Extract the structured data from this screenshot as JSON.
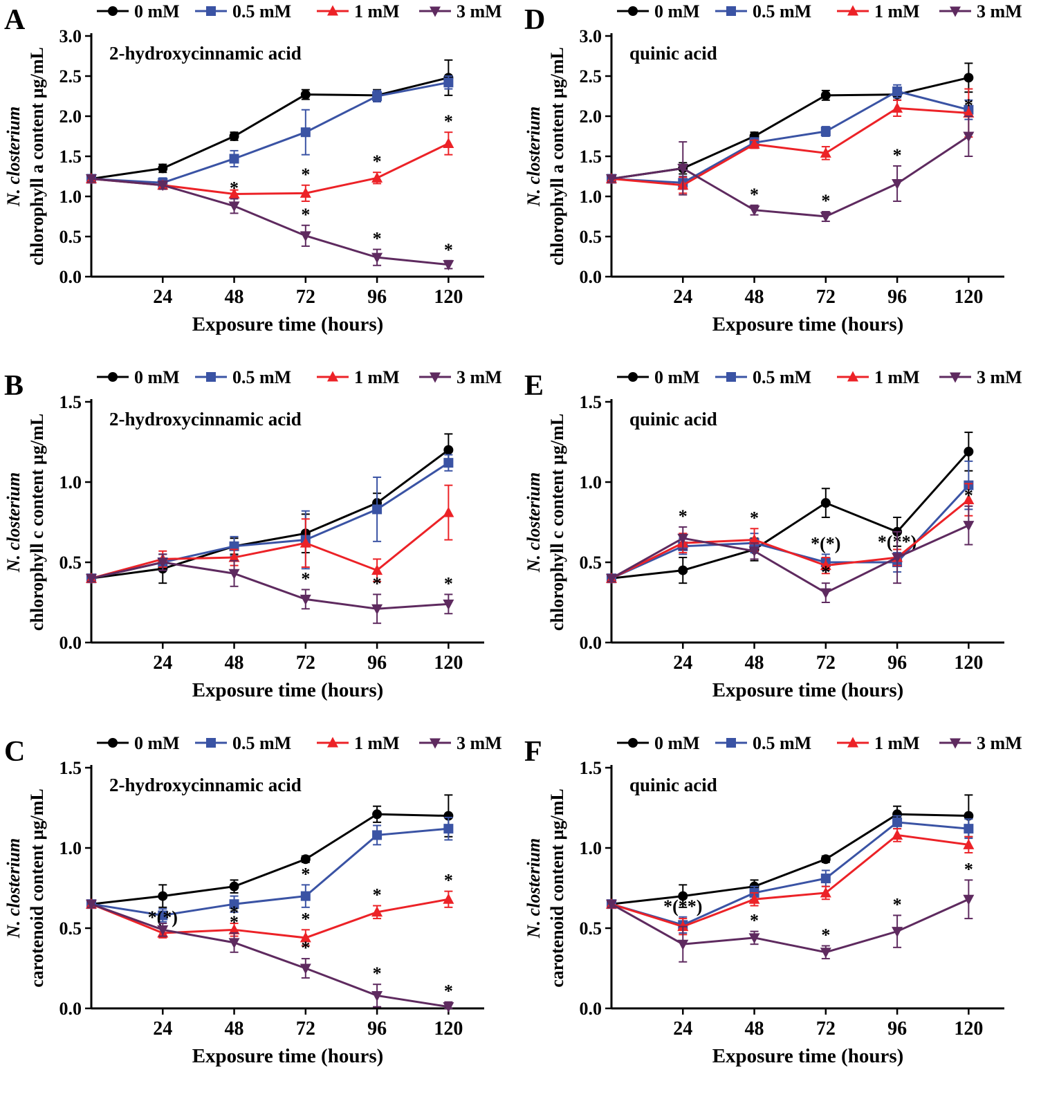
{
  "figure": {
    "background": "#ffffff",
    "xlabel": "Exposure time (hours)",
    "x_ticks": [
      24,
      48,
      72,
      96,
      120
    ],
    "species_label": "N. closterium",
    "legend": [
      {
        "label": "0 mM",
        "marker": "circle",
        "color": "#000000"
      },
      {
        "label": "0.5 mM",
        "marker": "square",
        "color": "#3a53a4"
      },
      {
        "label": "1 mM",
        "marker": "triangle-up",
        "color": "#ec2227"
      },
      {
        "label": "3 mM",
        "marker": "triangle-down",
        "color": "#5e2a5f"
      }
    ]
  },
  "chart_data": [
    {
      "id": "A",
      "type": "line",
      "title": "2-hydroxycinnamic acid",
      "ylabel_line1": "N. closterium",
      "ylabel_line2": "chlorophyll a content µg/mL",
      "xlabel": "Exposure time (hours)",
      "x": [
        0,
        24,
        48,
        72,
        96,
        120
      ],
      "x_ticks": [
        24,
        48,
        72,
        96,
        120
      ],
      "ylim": [
        0,
        3.0
      ],
      "y_ticks": [
        0,
        0.5,
        1.0,
        1.5,
        2.0,
        2.5,
        3.0
      ],
      "series": [
        {
          "name": "0 mM",
          "marker": "circle",
          "color": "#000000",
          "values": [
            1.22,
            1.35,
            1.75,
            2.27,
            2.26,
            2.48
          ],
          "err": [
            0.04,
            0.05,
            0.05,
            0.06,
            0.07,
            0.22
          ],
          "sig": [
            "",
            "",
            "",
            "",
            "",
            ""
          ]
        },
        {
          "name": "0.5 mM",
          "marker": "square",
          "color": "#3a53a4",
          "values": [
            1.22,
            1.17,
            1.47,
            1.8,
            2.25,
            2.42
          ],
          "err": [
            0.04,
            0.06,
            0.1,
            0.28,
            0.07,
            0.08
          ],
          "sig": [
            "",
            "",
            "*",
            "*",
            "",
            ""
          ]
        },
        {
          "name": "1 mM",
          "marker": "triangle-up",
          "color": "#ec2227",
          "values": [
            1.22,
            1.14,
            1.03,
            1.04,
            1.23,
            1.66
          ],
          "err": [
            0.04,
            0.05,
            0.05,
            0.1,
            0.07,
            0.14
          ],
          "sig": [
            "",
            "",
            "",
            "*",
            "*",
            "*"
          ]
        },
        {
          "name": "3 mM",
          "marker": "triangle-down",
          "color": "#5e2a5f",
          "values": [
            1.22,
            1.14,
            0.88,
            0.51,
            0.24,
            0.15
          ],
          "err": [
            0.04,
            0.05,
            0.09,
            0.13,
            0.1,
            0.05
          ],
          "sig": [
            "",
            "",
            "*",
            "*",
            "*",
            "*"
          ]
        }
      ]
    },
    {
      "id": "D",
      "type": "line",
      "title": "quinic acid",
      "ylabel_line1": "N. closterium",
      "ylabel_line2": "chlorophyll a content µg/mL",
      "xlabel": "Exposure time (hours)",
      "x": [
        0,
        24,
        48,
        72,
        96,
        120
      ],
      "x_ticks": [
        24,
        48,
        72,
        96,
        120
      ],
      "ylim": [
        0,
        3.0
      ],
      "y_ticks": [
        0,
        0.5,
        1.0,
        1.5,
        2.0,
        2.5,
        3.0
      ],
      "series": [
        {
          "name": "0 mM",
          "marker": "circle",
          "color": "#000000",
          "values": [
            1.22,
            1.35,
            1.75,
            2.26,
            2.27,
            2.48
          ],
          "err": [
            0.04,
            0.07,
            0.05,
            0.06,
            0.07,
            0.18
          ],
          "sig": [
            "",
            "",
            "",
            "",
            "",
            ""
          ]
        },
        {
          "name": "0.5 mM",
          "marker": "square",
          "color": "#3a53a4",
          "values": [
            1.22,
            1.17,
            1.67,
            1.81,
            2.31,
            2.08
          ],
          "err": [
            0.04,
            0.08,
            0.06,
            0.06,
            0.08,
            0.12
          ],
          "sig": [
            "",
            "",
            "",
            "",
            "",
            ""
          ]
        },
        {
          "name": "1 mM",
          "marker": "triangle-up",
          "color": "#ec2227",
          "values": [
            1.22,
            1.14,
            1.65,
            1.54,
            2.1,
            2.04
          ],
          "err": [
            0.04,
            0.1,
            0.05,
            0.08,
            0.1,
            0.3
          ],
          "sig": [
            "",
            "",
            "",
            "",
            "",
            ""
          ]
        },
        {
          "name": "3 mM",
          "marker": "triangle-down",
          "color": "#5e2a5f",
          "values": [
            1.22,
            1.35,
            0.83,
            0.75,
            1.16,
            1.75
          ],
          "err": [
            0.04,
            0.33,
            0.06,
            0.06,
            0.22,
            0.25
          ],
          "sig": [
            "",
            "",
            "*",
            "*",
            "*",
            "*"
          ]
        }
      ]
    },
    {
      "id": "B",
      "type": "line",
      "title": "2-hydroxycinnamic acid",
      "ylabel_line1": "N. closterium",
      "ylabel_line2": "chlorophyll c content µg/mL",
      "xlabel": "Exposure time (hours)",
      "x": [
        0,
        24,
        48,
        72,
        96,
        120
      ],
      "x_ticks": [
        24,
        48,
        72,
        96,
        120
      ],
      "ylim": [
        0,
        1.5
      ],
      "y_ticks": [
        0,
        0.5,
        1.0,
        1.5
      ],
      "series": [
        {
          "name": "0 mM",
          "marker": "circle",
          "color": "#000000",
          "values": [
            0.4,
            0.46,
            0.6,
            0.68,
            0.87,
            1.2
          ],
          "err": [
            0.02,
            0.09,
            0.05,
            0.12,
            0.06,
            0.1
          ],
          "sig": [
            "",
            "",
            "",
            "",
            "",
            ""
          ]
        },
        {
          "name": "0.5 mM",
          "marker": "square",
          "color": "#3a53a4",
          "values": [
            0.4,
            0.5,
            0.6,
            0.64,
            0.83,
            1.12
          ],
          "err": [
            0.02,
            0.05,
            0.06,
            0.18,
            0.2,
            0.05
          ],
          "sig": [
            "",
            "",
            "",
            "",
            "",
            ""
          ]
        },
        {
          "name": "1 mM",
          "marker": "triangle-up",
          "color": "#ec2227",
          "values": [
            0.4,
            0.52,
            0.53,
            0.62,
            0.45,
            0.81
          ],
          "err": [
            0.02,
            0.05,
            0.05,
            0.15,
            0.07,
            0.17
          ],
          "sig": [
            "",
            "",
            "",
            "",
            "",
            ""
          ]
        },
        {
          "name": "3 mM",
          "marker": "triangle-down",
          "color": "#5e2a5f",
          "values": [
            0.4,
            0.5,
            0.43,
            0.27,
            0.21,
            0.24
          ],
          "err": [
            0.02,
            0.05,
            0.08,
            0.06,
            0.09,
            0.06
          ],
          "sig": [
            "",
            "",
            "",
            "*",
            "*",
            "*"
          ]
        }
      ]
    },
    {
      "id": "E",
      "type": "line",
      "title": "quinic acid",
      "ylabel_line1": "N. closterium",
      "ylabel_line2": "chlorophyll c content µg/mL",
      "xlabel": "Exposure time (hours)",
      "x": [
        0,
        24,
        48,
        72,
        96,
        120
      ],
      "x_ticks": [
        24,
        48,
        72,
        96,
        120
      ],
      "ylim": [
        0,
        1.5
      ],
      "y_ticks": [
        0,
        0.5,
        1.0,
        1.5
      ],
      "series": [
        {
          "name": "0 mM",
          "marker": "circle",
          "color": "#000000",
          "values": [
            0.4,
            0.45,
            0.58,
            0.87,
            0.69,
            1.19
          ],
          "err": [
            0.02,
            0.08,
            0.07,
            0.09,
            0.09,
            0.12
          ],
          "sig": [
            "",
            "",
            "",
            "",
            "",
            ""
          ]
        },
        {
          "name": "0.5 mM",
          "marker": "square",
          "color": "#3a53a4",
          "values": [
            0.4,
            0.6,
            0.62,
            0.5,
            0.5,
            0.98
          ],
          "err": [
            0.02,
            0.05,
            0.06,
            0.05,
            0.06,
            0.15
          ],
          "sig": [
            "",
            "",
            "",
            "*(*)",
            "*(**)",
            ""
          ]
        },
        {
          "name": "1 mM",
          "marker": "triangle-up",
          "color": "#ec2227",
          "values": [
            0.4,
            0.62,
            0.64,
            0.48,
            0.53,
            0.89
          ],
          "err": [
            0.02,
            0.06,
            0.07,
            0.05,
            0.05,
            0.1
          ],
          "sig": [
            "",
            "",
            "*",
            "",
            "",
            ""
          ]
        },
        {
          "name": "3 mM",
          "marker": "triangle-down",
          "color": "#5e2a5f",
          "values": [
            0.4,
            0.65,
            0.57,
            0.31,
            0.53,
            0.73
          ],
          "err": [
            0.02,
            0.07,
            0.05,
            0.06,
            0.16,
            0.12
          ],
          "sig": [
            "",
            "*",
            "",
            "*",
            "",
            "*"
          ]
        }
      ]
    },
    {
      "id": "C",
      "type": "line",
      "title": "2-hydroxycinnamic acid",
      "ylabel_line1": "N. closterium",
      "ylabel_line2": "carotenoid  content µg/mL",
      "xlabel": "Exposure time (hours)",
      "x": [
        0,
        24,
        48,
        72,
        96,
        120
      ],
      "x_ticks": [
        24,
        48,
        72,
        96,
        120
      ],
      "ylim": [
        0,
        1.5
      ],
      "y_ticks": [
        0,
        0.5,
        1.0,
        1.5
      ],
      "series": [
        {
          "name": "0 mM",
          "marker": "circle",
          "color": "#000000",
          "values": [
            0.65,
            0.7,
            0.76,
            0.93,
            1.21,
            1.2
          ],
          "err": [
            0.02,
            0.07,
            0.04,
            0.02,
            0.05,
            0.13
          ],
          "sig": [
            "",
            "",
            "",
            "",
            "",
            ""
          ]
        },
        {
          "name": "0.5 mM",
          "marker": "square",
          "color": "#3a53a4",
          "values": [
            0.65,
            0.58,
            0.65,
            0.7,
            1.08,
            1.12
          ],
          "err": [
            0.02,
            0.04,
            0.05,
            0.07,
            0.06,
            0.07
          ],
          "sig": [
            "",
            "",
            "",
            "*",
            "",
            ""
          ]
        },
        {
          "name": "1 mM",
          "marker": "triangle-up",
          "color": "#ec2227",
          "values": [
            0.65,
            0.47,
            0.49,
            0.44,
            0.6,
            0.68
          ],
          "err": [
            0.02,
            0.03,
            0.04,
            0.05,
            0.04,
            0.05
          ],
          "sig": [
            "",
            "*(*)",
            "*",
            "*",
            "*",
            "*"
          ]
        },
        {
          "name": "3 mM",
          "marker": "triangle-down",
          "color": "#5e2a5f",
          "values": [
            0.65,
            0.49,
            0.41,
            0.25,
            0.08,
            0.01
          ],
          "err": [
            0.02,
            0.04,
            0.06,
            0.06,
            0.07,
            0.03
          ],
          "sig": [
            "",
            "",
            "*",
            "*",
            "*",
            "*"
          ]
        }
      ]
    },
    {
      "id": "F",
      "type": "line",
      "title": "quinic acid",
      "ylabel_line1": "N. closterium",
      "ylabel_line2": "carotenoid  content µg/mL",
      "xlabel": "Exposure time (hours)",
      "x": [
        0,
        24,
        48,
        72,
        96,
        120
      ],
      "x_ticks": [
        24,
        48,
        72,
        96,
        120
      ],
      "ylim": [
        0,
        1.5
      ],
      "y_ticks": [
        0,
        0.5,
        1.0,
        1.5
      ],
      "series": [
        {
          "name": "0 mM",
          "marker": "circle",
          "color": "#000000",
          "values": [
            0.65,
            0.7,
            0.76,
            0.93,
            1.21,
            1.2
          ],
          "err": [
            0.02,
            0.07,
            0.04,
            0.02,
            0.05,
            0.13
          ],
          "sig": [
            "",
            "",
            "",
            "",
            "",
            ""
          ]
        },
        {
          "name": "0.5 mM",
          "marker": "square",
          "color": "#3a53a4",
          "values": [
            0.65,
            0.52,
            0.72,
            0.81,
            1.16,
            1.12
          ],
          "err": [
            0.02,
            0.05,
            0.04,
            0.05,
            0.04,
            0.06
          ],
          "sig": [
            "",
            "*(**)",
            "",
            "",
            "",
            ""
          ]
        },
        {
          "name": "1 mM",
          "marker": "triangle-up",
          "color": "#ec2227",
          "values": [
            0.65,
            0.51,
            0.68,
            0.72,
            1.08,
            1.02
          ],
          "err": [
            0.02,
            0.05,
            0.04,
            0.04,
            0.04,
            0.05
          ],
          "sig": [
            "",
            "",
            "",
            "",
            "",
            ""
          ]
        },
        {
          "name": "3 mM",
          "marker": "triangle-down",
          "color": "#5e2a5f",
          "values": [
            0.65,
            0.4,
            0.44,
            0.35,
            0.48,
            0.68
          ],
          "err": [
            0.02,
            0.11,
            0.04,
            0.04,
            0.1,
            0.12
          ],
          "sig": [
            "",
            "",
            "*",
            "*",
            "*",
            "*"
          ]
        }
      ]
    }
  ]
}
